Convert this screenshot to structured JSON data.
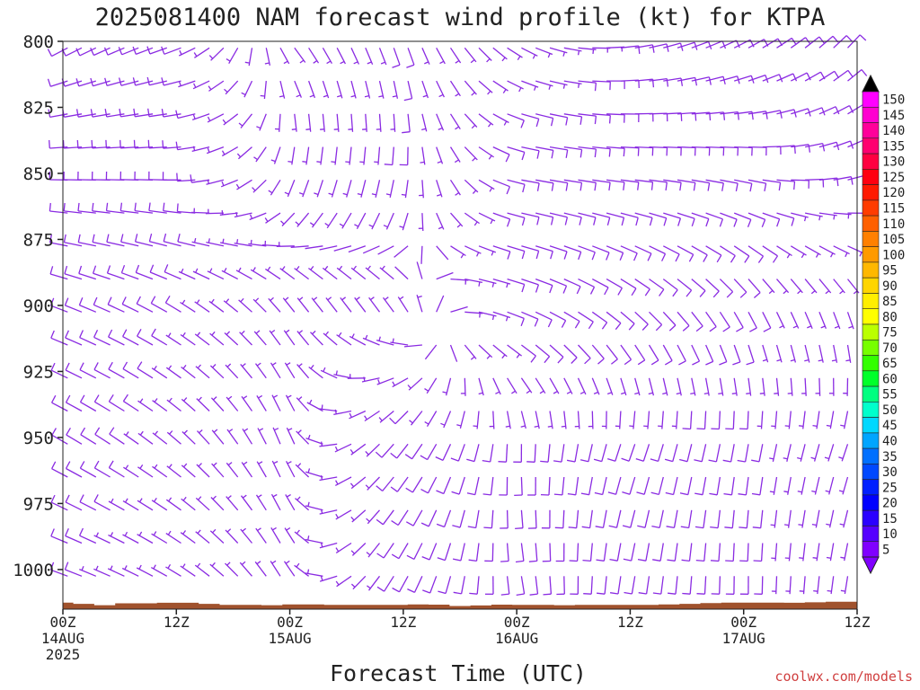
{
  "chart_data": {
    "type": "wind-barb-profile",
    "title": "2025081400 NAM forecast wind profile (kt) for KTPA",
    "xlabel": "Forecast Time (UTC)",
    "ylabel": "",
    "credit": "coolwx.com/models",
    "y_ticks": [
      "800",
      "825",
      "850",
      "875",
      "900",
      "925",
      "950",
      "975",
      "1000"
    ],
    "x_ticks": [
      {
        "line1": "00Z",
        "line2": "14AUG",
        "line3": "2025"
      },
      {
        "line1": "12Z",
        "line2": "",
        "line3": ""
      },
      {
        "line1": "00Z",
        "line2": "15AUG",
        "line3": ""
      },
      {
        "line1": "12Z",
        "line2": "",
        "line3": ""
      },
      {
        "line1": "00Z",
        "line2": "16AUG",
        "line3": ""
      },
      {
        "line1": "12Z",
        "line2": "",
        "line3": ""
      },
      {
        "line1": "00Z",
        "line2": "17AUG",
        "line3": ""
      },
      {
        "line1": "12Z",
        "line2": "",
        "line3": ""
      }
    ],
    "x_range_hours": [
      0,
      84
    ],
    "y_range_hPa": [
      800,
      1015
    ],
    "colorbar_labels": [
      "150",
      "145",
      "140",
      "135",
      "130",
      "125",
      "120",
      "115",
      "110",
      "105",
      "100",
      "95",
      "90",
      "85",
      "80",
      "75",
      "70",
      "65",
      "60",
      "55",
      "50",
      "45",
      "40",
      "35",
      "30",
      "25",
      "20",
      "15",
      "10",
      "5"
    ],
    "colorbar_colors": [
      "#ff00ff",
      "#ff00d0",
      "#ff009a",
      "#ff0070",
      "#ff0040",
      "#ff0010",
      "#ff1a00",
      "#ff3c00",
      "#ff6000",
      "#ff8000",
      "#ff9a00",
      "#ffb800",
      "#ffd500",
      "#ffee00",
      "#ffff00",
      "#bbff00",
      "#77ff00",
      "#33ff00",
      "#00ff2a",
      "#00ff80",
      "#00ffcc",
      "#00d8ff",
      "#00a5ff",
      "#0070ff",
      "#0048ff",
      "#0020ff",
      "#0000ff",
      "#2a00ff",
      "#5500ff",
      "#8000ff"
    ],
    "barb_color": "#8a2be2",
    "terrain_color": "#a0522d",
    "surface_pressure_hPa": [
      1012.5,
      1013,
      1013.5,
      1012.8,
      1012.8,
      1012.6,
      1012.6,
      1013,
      1013.4,
      1013.4,
      1013.5,
      1013.2,
      1013.2,
      1013.4,
      1013.4,
      1013.4,
      1013.4,
      1013.2,
      1013.3,
      1013.8,
      1013.6,
      1013.3,
      1013.4,
      1013.4,
      1013.5,
      1013.4,
      1013.4,
      1013.4,
      1013.4,
      1013.2,
      1013,
      1012.7,
      1012.5,
      1012.5,
      1012.5,
      1012.6,
      1012.4,
      1012.2,
      1012.2
    ],
    "wind_profile": [
      {
        "hour": 0,
        "levels": [
          [
            800,
            240,
            8
          ],
          [
            850,
            270,
            12
          ],
          [
            900,
            290,
            12
          ],
          [
            950,
            300,
            10
          ],
          [
            1000,
            290,
            8
          ]
        ]
      },
      {
        "hour": 12,
        "levels": [
          [
            800,
            250,
            8
          ],
          [
            850,
            270,
            10
          ],
          [
            900,
            300,
            8
          ],
          [
            950,
            310,
            6
          ],
          [
            1000,
            300,
            6
          ]
        ]
      },
      {
        "hour": 24,
        "levels": [
          [
            800,
            140,
            5
          ],
          [
            850,
            200,
            5
          ],
          [
            900,
            320,
            5
          ],
          [
            950,
            340,
            5
          ],
          [
            1000,
            330,
            5
          ]
        ]
      },
      {
        "hour": 36,
        "levels": [
          [
            800,
            160,
            8
          ],
          [
            850,
            190,
            8
          ],
          [
            900,
            330,
            5
          ],
          [
            950,
            220,
            10
          ],
          [
            1000,
            210,
            10
          ]
        ]
      },
      {
        "hour": 48,
        "levels": [
          [
            800,
            120,
            6
          ],
          [
            850,
            100,
            10
          ],
          [
            900,
            110,
            10
          ],
          [
            950,
            180,
            8
          ],
          [
            1000,
            170,
            8
          ]
        ]
      },
      {
        "hour": 60,
        "levels": [
          [
            800,
            80,
            8
          ],
          [
            850,
            95,
            10
          ],
          [
            900,
            130,
            10
          ],
          [
            950,
            200,
            8
          ],
          [
            1000,
            190,
            8
          ]
        ]
      },
      {
        "hour": 72,
        "levels": [
          [
            800,
            60,
            10
          ],
          [
            850,
            100,
            10
          ],
          [
            900,
            150,
            8
          ],
          [
            950,
            190,
            8
          ],
          [
            1000,
            180,
            8
          ]
        ]
      },
      {
        "hour": 84,
        "levels": [
          [
            800,
            40,
            8
          ],
          [
            850,
            70,
            8
          ],
          [
            900,
            160,
            6
          ],
          [
            950,
            200,
            6
          ],
          [
            1000,
            190,
            6
          ]
        ]
      }
    ]
  }
}
